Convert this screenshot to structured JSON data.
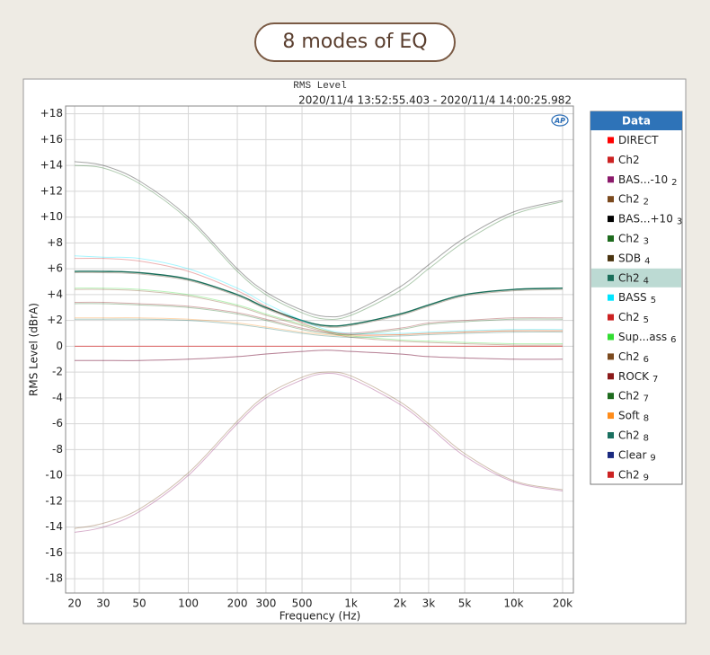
{
  "banner": "8 modes of EQ",
  "chart_data": {
    "type": "line",
    "title": "RMS Level",
    "subtitle": "2020/11/4 13:52:55.403 - 2020/11/4 14:00:25.982",
    "logo": "AP",
    "x_label": "Frequency (Hz)",
    "y_label": "RMS Level (dBrA)",
    "legend_title": "Data",
    "x_log": true,
    "grid": true,
    "highlight": 7,
    "line_opacity": 0.35,
    "xlim": [
      17.6,
      23300
    ],
    "ylim": [
      -19.1,
      18.6
    ],
    "xticks": [
      20,
      30,
      50,
      100,
      200,
      300,
      500,
      {
        "value": 1000,
        "label": "1k"
      },
      {
        "value": 2000,
        "label": "2k"
      },
      {
        "value": 3000,
        "label": "3k"
      },
      {
        "value": 5000,
        "label": "5k"
      },
      {
        "value": 10000,
        "label": "10k"
      },
      {
        "value": 20000,
        "label": "20k"
      }
    ],
    "yticks": [
      {
        "value": 18,
        "label": "+18"
      },
      {
        "value": 16,
        "label": "+16"
      },
      {
        "value": 14,
        "label": "+14"
      },
      {
        "value": 12,
        "label": "+12"
      },
      {
        "value": 10,
        "label": "+10"
      },
      {
        "value": 8,
        "label": "+8"
      },
      {
        "value": 6,
        "label": "+6"
      },
      {
        "value": 4,
        "label": "+4"
      },
      {
        "value": 2,
        "label": "+2"
      },
      0,
      -2,
      -4,
      -6,
      -8,
      -10,
      -12,
      -14,
      -16,
      -18
    ],
    "x": [
      20,
      30,
      50,
      100,
      200,
      300,
      500,
      700,
      1000,
      2000,
      3000,
      5000,
      10000,
      20000
    ],
    "series": [
      {
        "name": "DIRECT",
        "sub": null,
        "color": "#ff0000",
        "values": [
          0,
          0,
          0,
          0,
          0,
          0,
          0,
          0,
          0,
          0,
          0,
          0,
          0,
          0
        ]
      },
      {
        "name": "Ch2",
        "sub": null,
        "color": "#cc2222",
        "values": [
          0,
          0,
          0,
          0,
          0,
          0,
          0,
          0,
          0,
          0,
          0,
          0,
          0,
          0
        ]
      },
      {
        "name": "BAS...-10",
        "sub": "2",
        "color": "#8b1a6b",
        "values": [
          -14.4,
          -14,
          -12.8,
          -10,
          -6,
          -4,
          -2.6,
          -2.1,
          -2.5,
          -4.5,
          -6.2,
          -8.5,
          -10.5,
          -11.2
        ]
      },
      {
        "name": "Ch2",
        "sub": "2",
        "color": "#7b4a1e",
        "values": [
          -14.1,
          -13.7,
          -12.6,
          -9.8,
          -5.8,
          -3.8,
          -2.4,
          -2,
          -2.3,
          -4.3,
          -6,
          -8.3,
          -10.4,
          -11.1
        ]
      },
      {
        "name": "BAS...+10",
        "sub": "3",
        "color": "#000000",
        "values": [
          14.3,
          14,
          12.8,
          10,
          6,
          4.2,
          2.8,
          2.3,
          2.6,
          4.6,
          6.3,
          8.4,
          10.4,
          11.3
        ]
      },
      {
        "name": "Ch2",
        "sub": "3",
        "color": "#1e6b1e",
        "values": [
          14,
          13.8,
          12.6,
          9.8,
          5.8,
          4,
          2.6,
          2.1,
          2.4,
          4.3,
          6,
          8.1,
          10.2,
          11.2
        ]
      },
      {
        "name": "SDB",
        "sub": "4",
        "color": "#4a3410",
        "values": [
          5.7,
          5.7,
          5.6,
          5.1,
          3.9,
          2.9,
          1.9,
          1.5,
          1.6,
          2.4,
          3.1,
          3.9,
          4.3,
          4.4
        ]
      },
      {
        "name": "Ch2",
        "sub": "4",
        "color": "#1a6e5a",
        "values": [
          5.8,
          5.8,
          5.7,
          5.2,
          4,
          3,
          2,
          1.6,
          1.7,
          2.5,
          3.2,
          4,
          4.4,
          4.5
        ]
      },
      {
        "name": "BASS",
        "sub": "5",
        "color": "#00e5ff",
        "values": [
          7,
          6.9,
          6.8,
          6,
          4.5,
          3.3,
          2,
          1.3,
          1,
          1,
          1.1,
          1.2,
          1.3,
          1.3
        ]
      },
      {
        "name": "Ch2",
        "sub": "5",
        "color": "#cc2222",
        "values": [
          6.8,
          6.8,
          6.6,
          5.8,
          4.3,
          3.1,
          1.8,
          1.2,
          0.9,
          0.9,
          1,
          1.1,
          1.2,
          1.2
        ]
      },
      {
        "name": "Sup...ass",
        "sub": "6",
        "color": "#33dd33",
        "values": [
          4.5,
          4.5,
          4.4,
          4,
          3.2,
          2.5,
          1.7,
          1.2,
          0.8,
          0.5,
          0.4,
          0.3,
          0.2,
          0.2
        ]
      },
      {
        "name": "Ch2",
        "sub": "6",
        "color": "#7b4a1e",
        "values": [
          4.4,
          4.4,
          4.3,
          3.9,
          3.1,
          2.4,
          1.6,
          1.1,
          0.7,
          0.4,
          0.3,
          0.2,
          0.1,
          0.1
        ]
      },
      {
        "name": "ROCK",
        "sub": "7",
        "color": "#8b1a1a",
        "values": [
          3.4,
          3.4,
          3.3,
          3.1,
          2.6,
          2.1,
          1.4,
          1.1,
          1,
          1.4,
          1.8,
          2,
          2.2,
          2.2
        ]
      },
      {
        "name": "Ch2",
        "sub": "7",
        "color": "#1e6b1e",
        "values": [
          3.3,
          3.3,
          3.2,
          3,
          2.5,
          2,
          1.3,
          1,
          0.9,
          1.3,
          1.7,
          1.9,
          2.1,
          2.1
        ]
      },
      {
        "name": "Soft",
        "sub": "8",
        "color": "#ff8c1a",
        "values": [
          2.2,
          2.2,
          2.2,
          2.1,
          1.8,
          1.5,
          1.1,
          0.9,
          0.8,
          0.9,
          1,
          1.1,
          1.2,
          1.2
        ]
      },
      {
        "name": "Ch2",
        "sub": "8",
        "color": "#1a7060",
        "values": [
          2.1,
          2.1,
          2.1,
          2,
          1.7,
          1.4,
          1,
          0.8,
          0.7,
          0.8,
          0.9,
          1,
          1.1,
          1.1
        ]
      },
      {
        "name": "Clear",
        "sub": "9",
        "color": "#1a2a80",
        "values": [
          -1.1,
          -1.1,
          -1.1,
          -1,
          -0.8,
          -0.6,
          -0.4,
          -0.3,
          -0.4,
          -0.6,
          -0.8,
          -0.9,
          -1,
          -1
        ]
      },
      {
        "name": "Ch2",
        "sub": "9",
        "color": "#cc2222",
        "values": [
          -1.1,
          -1.1,
          -1.1,
          -1,
          -0.8,
          -0.6,
          -0.4,
          -0.3,
          -0.4,
          -0.6,
          -0.8,
          -0.9,
          -1,
          -1
        ]
      }
    ]
  }
}
